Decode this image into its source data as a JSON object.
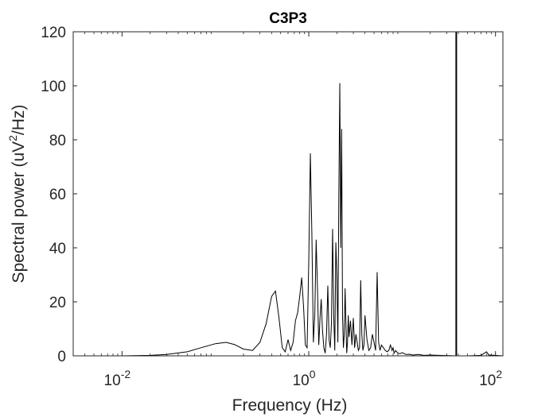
{
  "chart_data": {
    "type": "line",
    "title": "C3P3",
    "xlabel": "Frequency (Hz)",
    "ylabel": "Spectral power (uV²/Hz)",
    "ylabel_parts": {
      "pre": "Spectral power (uV",
      "sup": "2",
      "post": "/Hz)"
    },
    "xscale": "log",
    "xlim": [
      0.003,
      120
    ],
    "ylim": [
      0,
      120
    ],
    "grid": false,
    "x_ticks": [
      {
        "value": 0.01,
        "base": "10",
        "exp": "-2"
      },
      {
        "value": 1,
        "base": "10",
        "exp": "0"
      },
      {
        "value": 100,
        "base": "10",
        "exp": "2"
      }
    ],
    "y_ticks": [
      0,
      20,
      40,
      60,
      80,
      100,
      120
    ],
    "vertical_line": {
      "x": 38
    },
    "series": [
      {
        "color": "#000000",
        "x": [
          0.003,
          0.005,
          0.01,
          0.02,
          0.03,
          0.05,
          0.07,
          0.1,
          0.13,
          0.16,
          0.2,
          0.25,
          0.3,
          0.35,
          0.4,
          0.44,
          0.48,
          0.52,
          0.56,
          0.6,
          0.64,
          0.68,
          0.72,
          0.76,
          0.8,
          0.84,
          0.88,
          0.92,
          0.96,
          1.0,
          1.04,
          1.08,
          1.12,
          1.16,
          1.2,
          1.24,
          1.28,
          1.32,
          1.36,
          1.4,
          1.45,
          1.5,
          1.55,
          1.6,
          1.65,
          1.7,
          1.75,
          1.8,
          1.85,
          1.9,
          1.95,
          2.0,
          2.05,
          2.1,
          2.15,
          2.2,
          2.25,
          2.3,
          2.35,
          2.4,
          2.45,
          2.5,
          2.55,
          2.6,
          2.65,
          2.7,
          2.8,
          2.9,
          3.0,
          3.1,
          3.2,
          3.3,
          3.4,
          3.5,
          3.6,
          3.7,
          3.8,
          3.9,
          4.0,
          4.2,
          4.4,
          4.6,
          4.8,
          5.0,
          5.2,
          5.4,
          5.6,
          5.8,
          6.0,
          6.3,
          6.6,
          6.9,
          7.2,
          7.5,
          7.8,
          8.0,
          8.2,
          8.5,
          9.0,
          9.5,
          10.0,
          11.0,
          12.0,
          13.0,
          15.0,
          17.0,
          20.0,
          25.0,
          30.0,
          38.0,
          50.0,
          70.0,
          80.0,
          85.0,
          100.0,
          120.0
        ],
        "y": [
          0,
          0,
          0,
          0.2,
          0.5,
          1.5,
          3,
          4.5,
          5,
          4.2,
          2.5,
          2,
          5,
          12,
          22,
          24,
          14,
          3,
          1.5,
          6,
          2,
          5,
          13,
          16,
          22,
          29,
          18,
          4,
          3,
          35,
          75,
          45,
          5,
          15,
          43,
          25,
          4,
          14,
          21,
          10,
          3,
          1,
          8,
          26,
          6,
          3,
          12,
          47,
          15,
          2,
          42,
          30,
          5,
          60,
          101,
          40,
          84,
          15,
          3,
          8,
          25,
          12,
          1,
          5,
          15,
          7,
          13,
          4,
          14,
          3,
          8,
          5,
          2,
          3,
          28,
          8,
          2,
          4,
          15,
          6,
          2,
          3,
          8,
          5,
          2,
          31,
          5,
          2,
          4,
          3,
          2,
          1.5,
          2,
          4,
          2,
          3,
          1,
          2,
          1,
          0.8,
          1.2,
          0.5,
          0.6,
          0.3,
          0.5,
          0.2,
          0.3,
          0.2,
          0.1,
          0,
          0,
          0.2,
          1.5,
          0.3,
          0.2,
          0
        ]
      }
    ]
  }
}
